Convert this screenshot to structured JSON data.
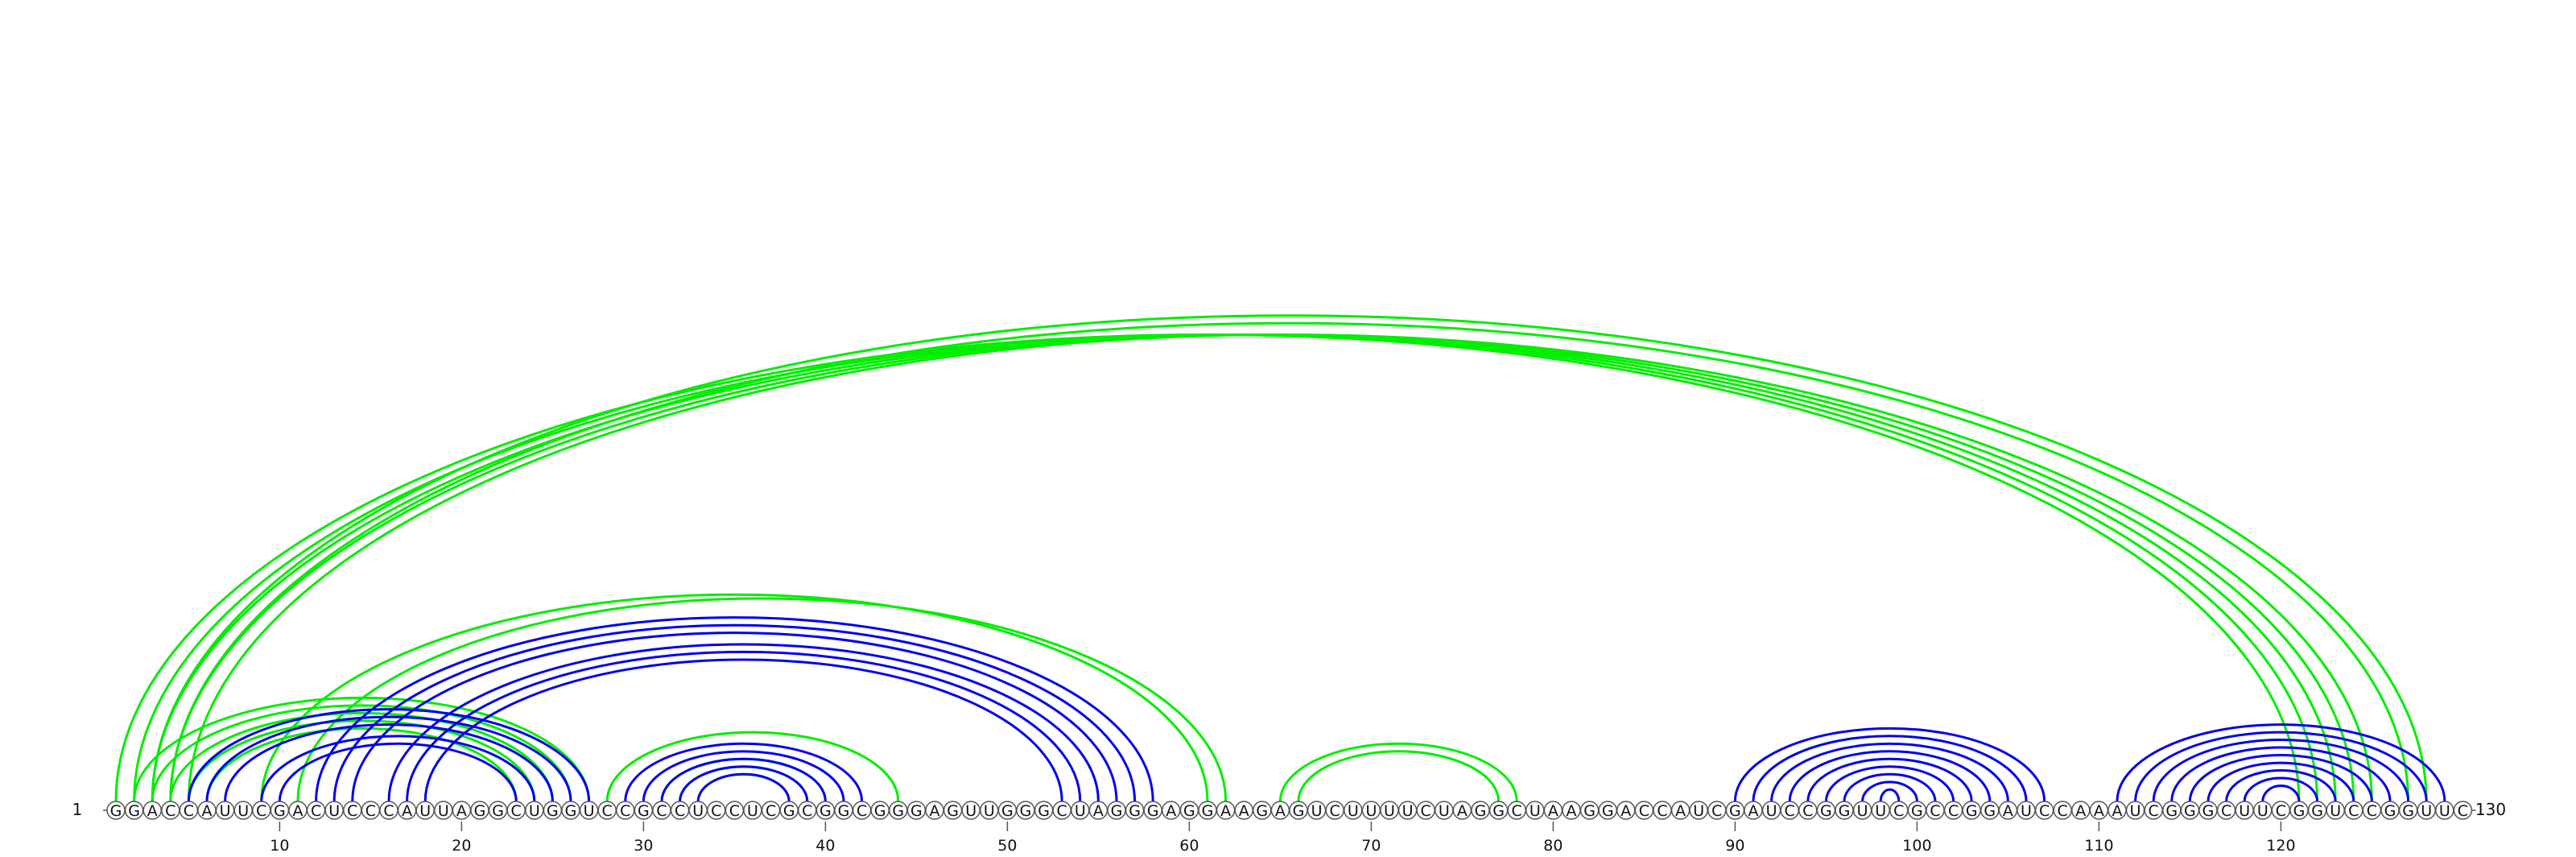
{
  "diagram": {
    "sequence": "GGACCAUUCGACUCCCAUUAGGCUGGUCCGCCUCCUCGCGGCGGGAGUUGGGCUAGGGAGGAAGAGUCUUUUCUAGGCUAAGGACCAUCGAUCCGGUUCGCCGGAUCCAAAUCGGGCUUCGGUCCGGUUC",
    "start_label": "1",
    "end_label": "130",
    "ticks": [
      10,
      20,
      30,
      40,
      50,
      60,
      70,
      80,
      90,
      100,
      110,
      120
    ],
    "colors": {
      "reference_arc": "#0000ee",
      "predicted_arc": "#00ee00",
      "nucleotide_fill": "#ffffff",
      "nucleotide_stroke": "#555555",
      "text": "#111111"
    },
    "arcs": [
      {
        "set": "blue",
        "pairs": [
          [
            5,
            27
          ],
          [
            6,
            26
          ],
          [
            7,
            25
          ],
          [
            9,
            24
          ],
          [
            10,
            23
          ]
        ]
      },
      {
        "set": "blue",
        "pairs": [
          [
            12,
            58
          ],
          [
            13,
            57
          ],
          [
            14,
            56
          ],
          [
            16,
            55
          ],
          [
            17,
            54
          ],
          [
            18,
            53
          ]
        ]
      },
      {
        "set": "blue",
        "pairs": [
          [
            29,
            42
          ],
          [
            30,
            41
          ],
          [
            31,
            40
          ],
          [
            32,
            39
          ],
          [
            33,
            38
          ]
        ]
      },
      {
        "set": "blue",
        "pairs": [
          [
            90,
            107
          ],
          [
            91,
            106
          ],
          [
            92,
            105
          ],
          [
            93,
            104
          ],
          [
            94,
            103
          ],
          [
            95,
            102
          ],
          [
            96,
            101
          ],
          [
            97,
            100
          ],
          [
            98,
            99
          ]
        ]
      },
      {
        "set": "blue",
        "pairs": [
          [
            111,
            129
          ],
          [
            112,
            128
          ],
          [
            113,
            127
          ],
          [
            114,
            126
          ],
          [
            115,
            125
          ],
          [
            116,
            124
          ],
          [
            117,
            123
          ],
          [
            118,
            122
          ],
          [
            119,
            121
          ]
        ]
      },
      {
        "set": "green",
        "pairs": [
          [
            1,
            121
          ],
          [
            2,
            122
          ],
          [
            3,
            123
          ],
          [
            4,
            124
          ],
          [
            5,
            125
          ]
        ]
      },
      {
        "set": "green",
        "pairs": [
          [
            3,
            128
          ],
          [
            4,
            127
          ]
        ]
      },
      {
        "set": "green",
        "pairs": [
          [
            2,
            27
          ],
          [
            3,
            26
          ],
          [
            4,
            25
          ],
          [
            5,
            24
          ],
          [
            6,
            23
          ]
        ]
      },
      {
        "set": "green",
        "pairs": [
          [
            11,
            62
          ]
        ]
      },
      {
        "set": "green",
        "pairs": [
          [
            28,
            44
          ],
          [
            31,
            40
          ],
          [
            32,
            39
          ],
          [
            33,
            38
          ]
        ]
      },
      {
        "set": "green",
        "pairs": [
          [
            65,
            78
          ],
          [
            66,
            77
          ]
        ]
      },
      {
        "set": "green",
        "pairs": [
          [
            9,
            61
          ]
        ]
      }
    ]
  }
}
